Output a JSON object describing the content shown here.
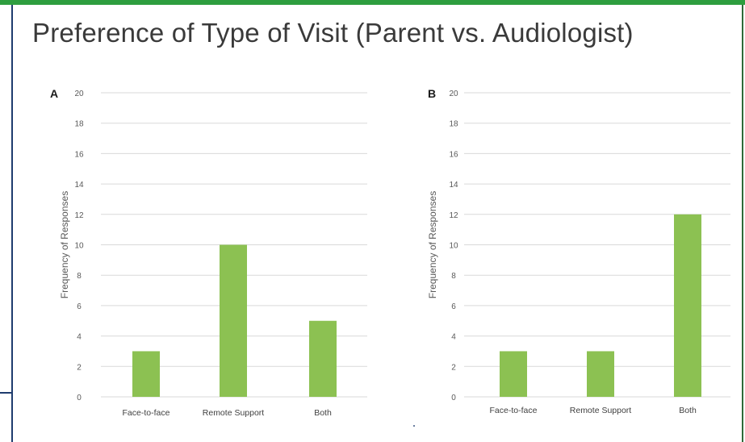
{
  "slide": {
    "title": "Preference of Type of Visit (Parent vs. Audiologist)"
  },
  "colors": {
    "top_bar": "#2e9e3f",
    "left_border": "#1f3c6e",
    "bar": "#8cc152",
    "grid": "#d9d9d9",
    "tick_text": "#595959"
  },
  "chart_data": [
    {
      "type": "bar",
      "panel_label": "A",
      "title": "",
      "xlabel": "",
      "ylabel": "Frequency of Responses",
      "categories": [
        "Face-to-face",
        "Remote Support",
        "Both"
      ],
      "values": [
        3,
        10,
        5
      ],
      "ylim": [
        0,
        20
      ],
      "yticks": [
        0,
        2,
        4,
        6,
        8,
        10,
        12,
        14,
        16,
        18,
        20
      ],
      "grid": true,
      "legend": "none"
    },
    {
      "type": "bar",
      "panel_label": "B",
      "title": "",
      "xlabel": "",
      "ylabel": "Frequency of Responses",
      "categories": [
        "Face-to-face",
        "Remote Support",
        "Both"
      ],
      "values": [
        3,
        3,
        12
      ],
      "ylim": [
        0,
        20
      ],
      "yticks": [
        0,
        2,
        4,
        6,
        8,
        10,
        12,
        14,
        16,
        18,
        20
      ],
      "grid": true,
      "legend": "none"
    }
  ]
}
